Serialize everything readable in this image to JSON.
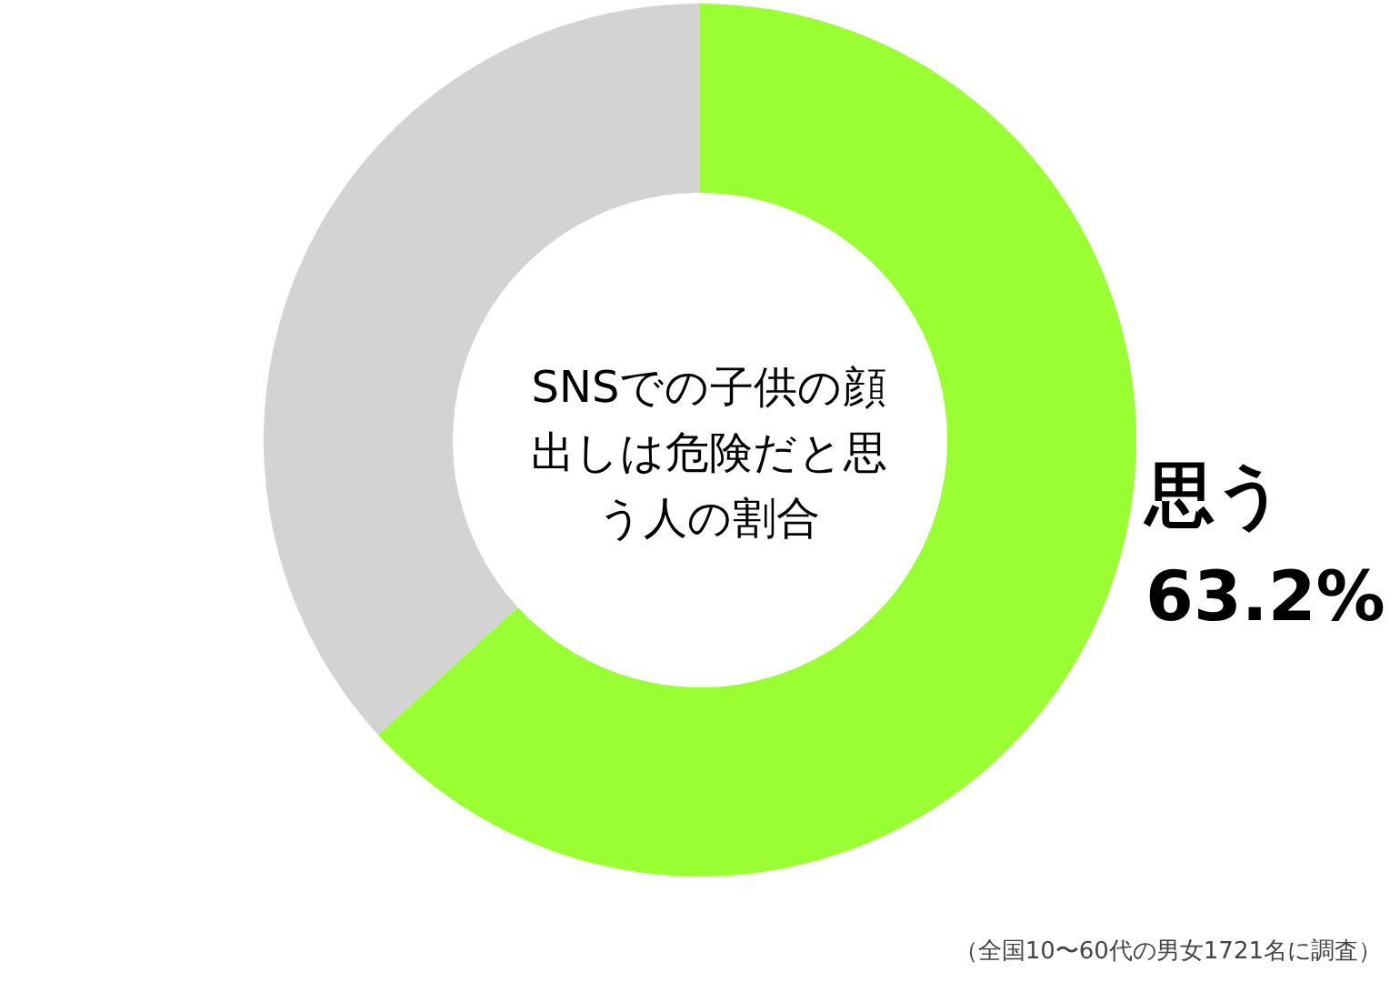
{
  "chart_data": {
    "type": "donut",
    "title": "SNSでの子供の顔出しは危険だと思う人の割合",
    "categories": [
      "思う",
      null
    ],
    "values": [
      63.2,
      36.8
    ],
    "colors": [
      "#99ff33",
      "#d3d3d3"
    ],
    "value_labels": [
      "63.2%",
      null
    ],
    "legend": false,
    "annotations": [
      "（全国10〜60代の男女1721名に調査）"
    ]
  }
}
